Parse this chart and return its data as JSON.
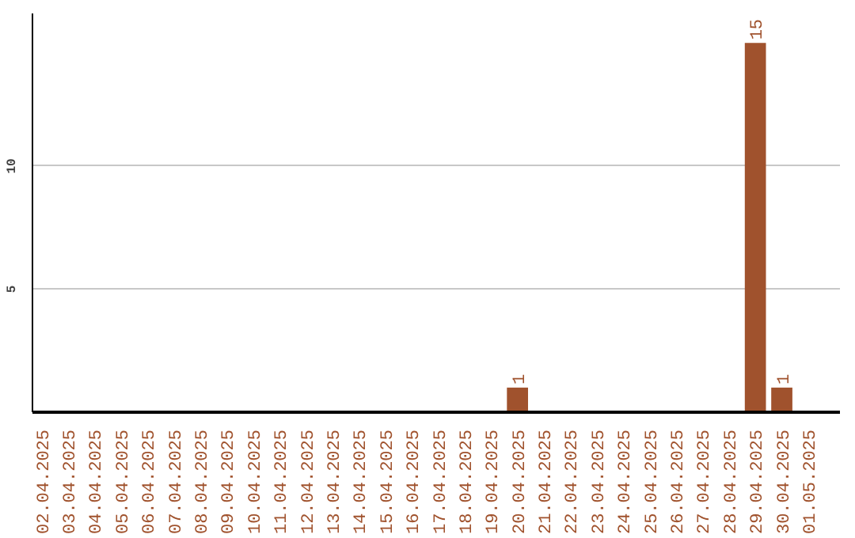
{
  "chart_data": {
    "type": "bar",
    "categories": [
      "02.04.2025",
      "03.04.2025",
      "04.04.2025",
      "05.04.2025",
      "06.04.2025",
      "07.04.2025",
      "08.04.2025",
      "09.04.2025",
      "10.04.2025",
      "11.04.2025",
      "12.04.2025",
      "13.04.2025",
      "14.04.2025",
      "15.04.2025",
      "16.04.2025",
      "17.04.2025",
      "18.04.2025",
      "19.04.2025",
      "20.04.2025",
      "21.04.2025",
      "22.04.2025",
      "23.04.2025",
      "24.04.2025",
      "25.04.2025",
      "26.04.2025",
      "27.04.2025",
      "28.04.2025",
      "29.04.2025",
      "30.04.2025",
      "01.05.2025"
    ],
    "values": [
      null,
      null,
      null,
      null,
      null,
      null,
      null,
      null,
      null,
      null,
      null,
      null,
      null,
      null,
      null,
      null,
      null,
      null,
      1,
      null,
      null,
      null,
      null,
      null,
      null,
      null,
      null,
      15,
      1,
      null
    ],
    "color": "#a0522d",
    "ylim": [
      0,
      16.2
    ],
    "yticks": [
      5,
      10
    ],
    "grid": "y",
    "data_labels": true
  }
}
